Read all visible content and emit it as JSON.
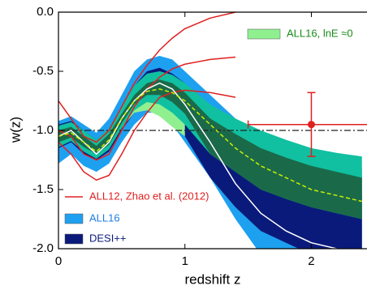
{
  "chart_data": {
    "type": "line",
    "xlabel": "redshift z",
    "ylabel": "w(z)",
    "xlim": [
      0,
      2.44
    ],
    "ylim": [
      -2,
      0
    ],
    "xticks": [
      0,
      1,
      2
    ],
    "yticks": [
      {
        "value": 0,
        "label": "0.0"
      },
      -0.5,
      {
        "value": -1,
        "label": "-1.0"
      },
      -1.5,
      {
        "value": -2,
        "label": "-2.0"
      }
    ],
    "hline": -1,
    "x": [
      0,
      0.1,
      0.2,
      0.3,
      0.4,
      0.5,
      0.6,
      0.7,
      0.8,
      0.9,
      1.0,
      1.2,
      1.4,
      1.6,
      1.8,
      2.0,
      2.2,
      2.4
    ],
    "series": [
      {
        "name": "ALL16",
        "kind": "band",
        "color": "#1ea0f0",
        "upper": [
          -0.92,
          -0.88,
          -0.95,
          -1.02,
          -0.9,
          -0.7,
          -0.5,
          -0.4,
          -0.37,
          -0.4,
          -0.5,
          -0.7,
          -0.9,
          -1.05,
          -1.15,
          -1.25,
          -1.3,
          -1.32
        ],
        "lower": [
          -1.28,
          -1.2,
          -1.3,
          -1.35,
          -1.28,
          -1.1,
          -0.95,
          -0.85,
          -0.85,
          -0.95,
          -1.1,
          -1.4,
          -1.75,
          -2.05,
          -2.1,
          -2.1,
          -2.1,
          -2.1
        ]
      },
      {
        "name": "DESI++",
        "kind": "band",
        "color": "#0a1a7a",
        "upper": [
          -0.95,
          -0.92,
          -1.0,
          -1.08,
          -0.98,
          -0.8,
          -0.62,
          -0.5,
          -0.47,
          -0.52,
          -0.6,
          -0.85,
          -1.05,
          -1.25,
          -1.35,
          -1.45,
          -1.5,
          -1.55
        ],
        "lower": [
          -1.15,
          -1.1,
          -1.2,
          -1.25,
          -1.18,
          -1.0,
          -0.85,
          -0.78,
          -0.8,
          -0.9,
          -1.05,
          -1.4,
          -1.65,
          -1.85,
          -1.95,
          -2.05,
          -2.1,
          -2.1
        ]
      },
      {
        "name": "ALL16,   lnE ≈0",
        "kind": "band",
        "color": "#90f090",
        "upper": [
          -0.98,
          -0.95,
          -1.02,
          -1.1,
          -1.0,
          -0.82,
          -0.66,
          -0.6,
          -0.6,
          -0.65,
          -0.72,
          null,
          null,
          null,
          null,
          null,
          null,
          null
        ],
        "lower": [
          -1.12,
          -1.08,
          -1.17,
          -1.22,
          -1.15,
          -0.98,
          -0.85,
          -0.83,
          -0.88,
          -0.97,
          -1.05,
          null,
          null,
          null,
          null,
          null,
          null,
          null
        ]
      },
      {
        "kind": "band",
        "color": "#10c0a0",
        "upper": [
          -0.96,
          -0.93,
          -1.0,
          -1.08,
          -0.98,
          -0.8,
          -0.62,
          -0.52,
          -0.5,
          -0.53,
          -0.6,
          -0.78,
          -0.9,
          -1.0,
          -1.08,
          -1.15,
          -1.19,
          -1.22
        ],
        "lower": [
          -1.14,
          -1.09,
          -1.18,
          -1.24,
          -1.16,
          -0.98,
          -0.83,
          -0.76,
          -0.78,
          -0.85,
          -0.95,
          -1.2,
          -1.35,
          -1.5,
          -1.58,
          -1.65,
          -1.7,
          -1.75
        ]
      },
      {
        "kind": "band",
        "color": "#1a6a4a",
        "upper": [
          -1.0,
          -0.97,
          -1.05,
          -1.13,
          -1.03,
          -0.86,
          -0.7,
          -0.6,
          -0.57,
          -0.6,
          -0.68,
          -0.9,
          -1.03,
          -1.15,
          -1.23,
          -1.3,
          -1.35,
          -1.4
        ],
        "lower": [
          -1.1,
          -1.06,
          -1.14,
          -1.2,
          -1.12,
          -0.94,
          -0.78,
          -0.7,
          -0.7,
          -0.76,
          -0.86,
          -1.2,
          -1.35,
          -1.5,
          -1.58,
          -1.65,
          -1.7,
          -1.75
        ]
      },
      {
        "name": "ALL12, Zhao et al. (2012)",
        "kind": "line",
        "color": "#e02020",
        "values": [
          -0.75,
          -0.9,
          -1.05,
          -1.1,
          -1.0,
          -0.8,
          -0.6,
          -0.45,
          -0.32,
          -0.22,
          -0.14,
          -0.05,
          0.0,
          null,
          null,
          null,
          null,
          null
        ]
      },
      {
        "kind": "line",
        "color": "#e02020",
        "values": [
          -1.0,
          -1.05,
          -1.2,
          -1.25,
          -1.2,
          -1.0,
          -0.8,
          -0.65,
          -0.55,
          -0.48,
          -0.44,
          -0.4,
          -0.38,
          null,
          null,
          null,
          null,
          null
        ]
      },
      {
        "kind": "line",
        "color": "#e02020",
        "values": [
          -1.1,
          -1.2,
          -1.35,
          -1.42,
          -1.38,
          -1.2,
          -1.0,
          -0.85,
          -0.72,
          -0.68,
          -0.66,
          -0.68,
          -0.72,
          null,
          null,
          null,
          null,
          null
        ]
      },
      {
        "kind": "line",
        "color": "#ffffff",
        "values": [
          -1.05,
          -1.0,
          -1.1,
          -1.2,
          -1.1,
          -0.9,
          -0.75,
          -0.65,
          -0.6,
          -0.65,
          -0.78,
          -1.1,
          -1.45,
          -1.7,
          -1.85,
          -1.95,
          -2.0,
          null
        ]
      },
      {
        "kind": "dashed",
        "color": "#c8f000",
        "values": [
          -1.05,
          -1.02,
          -1.1,
          -1.18,
          -1.08,
          -0.9,
          -0.75,
          -0.67,
          -0.65,
          -0.68,
          -0.75,
          -0.95,
          -1.15,
          -1.3,
          -1.4,
          -1.5,
          -1.55,
          -1.6
        ]
      }
    ],
    "point": {
      "x": 2,
      "y": -0.95,
      "xerr": 0.5,
      "yerr": 0.27,
      "color": "#e02020"
    }
  }
}
